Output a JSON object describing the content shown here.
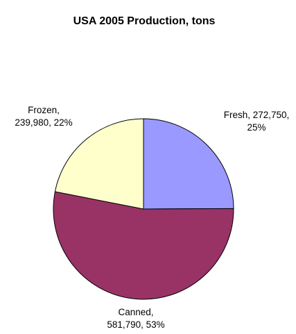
{
  "chart_data": {
    "type": "pie",
    "title": "USA 2005 Production, tons",
    "slices": [
      {
        "name": "Fresh",
        "value": 272750,
        "percent": 25,
        "color": "#9999ff",
        "label_lines": [
          "Fresh, 272,750,",
          "25%"
        ]
      },
      {
        "name": "Canned",
        "value": 581790,
        "percent": 53,
        "color": "#993366",
        "label_lines": [
          "Canned,",
          "581,790, 53%"
        ]
      },
      {
        "name": "Frozen",
        "value": 239980,
        "percent": 22,
        "color": "#ffffcc",
        "label_lines": [
          "Frozen,",
          "239,980, 22%"
        ]
      }
    ],
    "start_angle": "12 o'clock",
    "direction": "clockwise",
    "legend": "none"
  }
}
